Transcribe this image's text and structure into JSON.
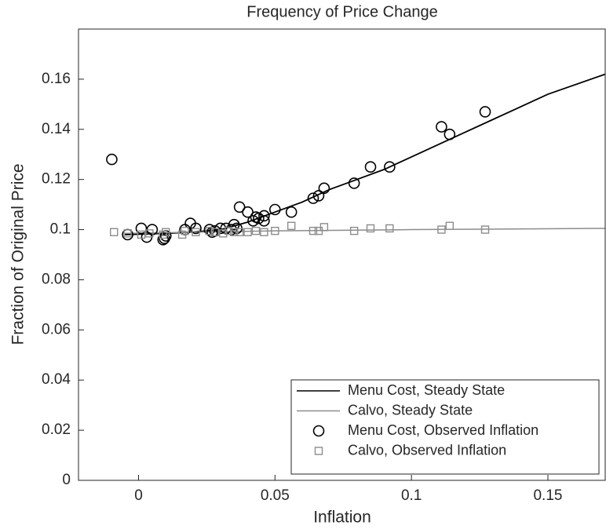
{
  "chart_data": {
    "type": "line",
    "title": "Frequency of Price Change",
    "xlabel": "Inflation",
    "ylabel": "Fraction of Original Price",
    "xlim": [
      -0.022,
      0.171
    ],
    "xticks": [
      0,
      0.05,
      0.1,
      0.15
    ],
    "ylim": [
      0,
      0.18
    ],
    "yticks": [
      0,
      0.02,
      0.04,
      0.06,
      0.08,
      0.1,
      0.12,
      0.14,
      0.16
    ],
    "legend": "lower right",
    "series": [
      {
        "name": "Menu Cost, Steady State",
        "color": "#000000",
        "marker": "none",
        "x": [
          -0.005,
          0.01,
          0.02,
          0.03,
          0.04,
          0.05,
          0.06,
          0.07,
          0.08,
          0.09,
          0.1,
          0.11,
          0.12,
          0.13,
          0.14,
          0.15,
          0.171
        ],
        "values": [
          0.098,
          0.0985,
          0.099,
          0.1,
          0.103,
          0.107,
          0.111,
          0.116,
          0.12,
          0.124,
          0.129,
          0.134,
          0.139,
          0.144,
          0.149,
          0.154,
          0.162
        ]
      },
      {
        "name": "Calvo, Steady State",
        "color": "#8c8c8c",
        "marker": "none",
        "x": [
          -0.005,
          0.05,
          0.1,
          0.171
        ],
        "values": [
          0.0985,
          0.0995,
          0.1,
          0.1005
        ]
      },
      {
        "name": "Menu Cost, Observed Inflation",
        "color": "#000000",
        "marker": "circle",
        "x": [
          -0.0098,
          -0.004,
          0.001,
          0.003,
          0.005,
          0.009,
          0.0095,
          0.01,
          0.017,
          0.019,
          0.021,
          0.026,
          0.027,
          0.028,
          0.03,
          0.032,
          0.034,
          0.035,
          0.036,
          0.037,
          0.04,
          0.042,
          0.043,
          0.044,
          0.046,
          0.046,
          0.05,
          0.056,
          0.064,
          0.066,
          0.068,
          0.079,
          0.085,
          0.092,
          0.111,
          0.114,
          0.127
        ],
        "values": [
          0.128,
          0.098,
          0.1005,
          0.097,
          0.1,
          0.096,
          0.0965,
          0.0975,
          0.1,
          0.1025,
          0.1005,
          0.1,
          0.099,
          0.0995,
          0.1005,
          0.1005,
          0.1,
          0.102,
          0.1005,
          0.109,
          0.107,
          0.1035,
          0.105,
          0.1045,
          0.1055,
          0.1035,
          0.108,
          0.107,
          0.1125,
          0.1135,
          0.1165,
          0.1185,
          0.125,
          0.125,
          0.141,
          0.138,
          0.147
        ]
      },
      {
        "name": "Calvo, Observed Inflation",
        "color": "#8c8c8c",
        "marker": "square",
        "x": [
          -0.009,
          -0.004,
          0.001,
          0.004,
          0.009,
          0.01,
          0.016,
          0.017,
          0.021,
          0.026,
          0.028,
          0.031,
          0.033,
          0.035,
          0.037,
          0.04,
          0.043,
          0.046,
          0.05,
          0.056,
          0.064,
          0.066,
          0.068,
          0.079,
          0.085,
          0.092,
          0.111,
          0.114,
          0.127
        ],
        "values": [
          0.099,
          0.0985,
          0.098,
          0.0985,
          0.098,
          0.099,
          0.098,
          0.0995,
          0.099,
          0.0995,
          0.099,
          0.0985,
          0.0995,
          0.099,
          0.099,
          0.099,
          0.0995,
          0.099,
          0.0995,
          0.1015,
          0.0995,
          0.0995,
          0.101,
          0.0995,
          0.1005,
          0.1005,
          0.1,
          0.1015,
          0.1
        ]
      }
    ]
  }
}
